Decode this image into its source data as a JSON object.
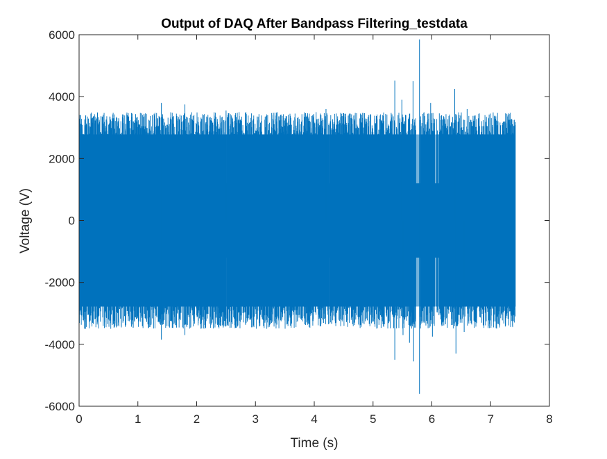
{
  "chart_data": {
    "type": "line",
    "title": "Output of DAQ After Bandpass Filtering_testdata",
    "xlabel": "Time (s)",
    "ylabel": "Voltage (V)",
    "xlim": [
      0,
      8
    ],
    "ylim": [
      -6000,
      6000
    ],
    "xticks": [
      0,
      1,
      2,
      3,
      4,
      5,
      6,
      7,
      8
    ],
    "yticks": [
      -6000,
      -4000,
      -2000,
      0,
      2000,
      4000,
      6000
    ],
    "xtick_labels": [
      "0",
      "1",
      "2",
      "3",
      "4",
      "5",
      "6",
      "7",
      "8"
    ],
    "ytick_labels": [
      "-6000",
      "-4000",
      "-2000",
      "0",
      "2000",
      "4000",
      "6000"
    ],
    "grid": false,
    "series": [
      {
        "color": "#0072BD",
        "t_range": [
          0,
          7.42
        ],
        "band_amplitude": 2780,
        "typical_peak": 3300,
        "gaps": [
          [
            5.73,
            5.8
          ],
          [
            6.05,
            6.08
          ],
          [
            6.1,
            6.12
          ],
          [
            2.5,
            2.51
          ],
          [
            4.25,
            4.26
          ]
        ],
        "spikes": [
          {
            "t": 0.0,
            "v": 3450
          },
          {
            "t": 1.4,
            "v": 3800
          },
          {
            "t": 1.4,
            "v": -3850
          },
          {
            "t": 1.8,
            "v": 3750
          },
          {
            "t": 1.8,
            "v": -3700
          },
          {
            "t": 2.5,
            "v": 3550
          },
          {
            "t": 4.2,
            "v": 3600
          },
          {
            "t": 5.37,
            "v": 4520
          },
          {
            "t": 5.37,
            "v": -4500
          },
          {
            "t": 5.49,
            "v": 3900
          },
          {
            "t": 5.51,
            "v": -3700
          },
          {
            "t": 5.62,
            "v": -3950
          },
          {
            "t": 5.68,
            "v": 4500
          },
          {
            "t": 5.69,
            "v": -4550
          },
          {
            "t": 5.79,
            "v": 5850
          },
          {
            "t": 5.79,
            "v": -5600
          },
          {
            "t": 5.98,
            "v": 3800
          },
          {
            "t": 6.01,
            "v": -3750
          },
          {
            "t": 6.39,
            "v": 4250
          },
          {
            "t": 6.41,
            "v": -4300
          },
          {
            "t": 6.55,
            "v": -3600
          },
          {
            "t": 6.6,
            "v": 3600
          }
        ]
      }
    ]
  }
}
